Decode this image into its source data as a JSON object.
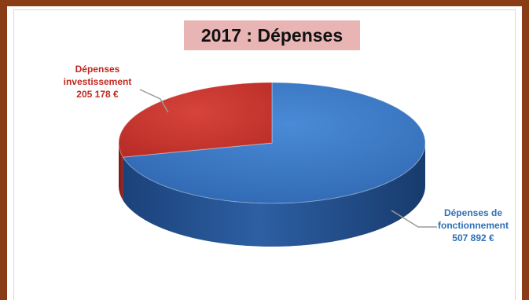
{
  "chart_data": {
    "type": "pie",
    "title": "2017 : Dépenses",
    "unit": "€",
    "slices": [
      {
        "key": "fonctionnement",
        "label_lines": [
          "Dépenses de",
          "fonctionnement",
          "507 892 €"
        ],
        "value": 507892,
        "color": "#3a78c5",
        "side_color": "#1f4d8a"
      },
      {
        "key": "investissement",
        "label_lines": [
          "Dépenses",
          "investissement",
          "205 178 €"
        ],
        "value": 205178,
        "color": "#c7342d",
        "side_color": "#8e1f1b"
      }
    ],
    "style": "3d",
    "legend": "none"
  }
}
